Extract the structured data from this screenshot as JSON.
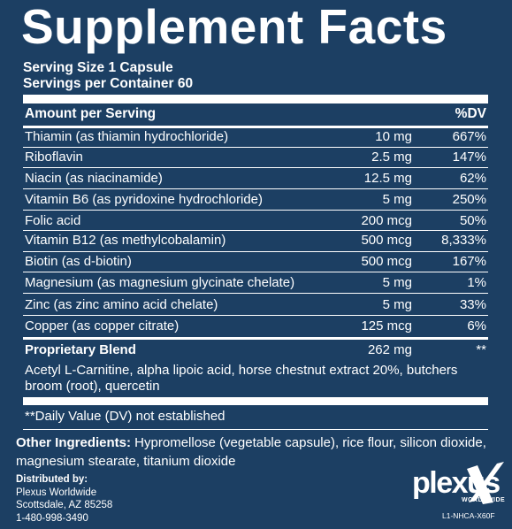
{
  "title": "Supplement Facts",
  "serving_size": "Serving Size 1 Capsule",
  "servings_per_container": "Servings per Container 60",
  "header": {
    "amount_label": "Amount per Serving",
    "dv_label": "%DV"
  },
  "nutrients": [
    {
      "name": "Thiamin (as thiamin hydrochloride)",
      "amount": "10 mg",
      "dv": "667%"
    },
    {
      "name": "Riboflavin",
      "amount": "2.5 mg",
      "dv": "147%"
    },
    {
      "name": "Niacin (as niacinamide)",
      "amount": "12.5 mg",
      "dv": "62%"
    },
    {
      "name": "Vitamin B6 (as pyridoxine hydrochloride)",
      "amount": "5 mg",
      "dv": "250%"
    },
    {
      "name": "Folic acid",
      "amount": "200 mcg",
      "dv": "50%"
    },
    {
      "name": "Vitamin B12 (as methylcobalamin)",
      "amount": "500 mcg",
      "dv": "8,333%"
    },
    {
      "name": "Biotin (as d-biotin)",
      "amount": "500 mcg",
      "dv": "167%"
    },
    {
      "name": "Magnesium (as magnesium glycinate chelate)",
      "amount": "5 mg",
      "dv": "1%"
    },
    {
      "name": "Zinc (as zinc amino acid chelate)",
      "amount": "5 mg",
      "dv": "33%"
    },
    {
      "name": "Copper (as copper citrate)",
      "amount": "125 mcg",
      "dv": "6%"
    }
  ],
  "blend": {
    "name": "Proprietary Blend",
    "amount": "262 mg",
    "dv": "**",
    "description": "Acetyl L-Carnitine, alpha lipoic acid, horse chestnut extract 20%, butchers broom (root), quercetin"
  },
  "footnote": "**Daily Value (DV) not established",
  "other_ingredients": {
    "label": "Other Ingredients:",
    "text": " Hypromellose (vegetable capsule), rice flour, silicon dioxide, magnesium stearate, titanium dioxide"
  },
  "distributor": {
    "heading": "Distributed by:",
    "name": "Plexus Worldwide",
    "city": "Scottsdale, AZ 85258",
    "phone": "1-480-998-3490"
  },
  "logo": {
    "word": "plexus",
    "sub": "WORLDWIDE"
  },
  "label_code": "L1-NHCA-X60F",
  "colors": {
    "background": "#1c3f63",
    "text": "#ffffff"
  }
}
